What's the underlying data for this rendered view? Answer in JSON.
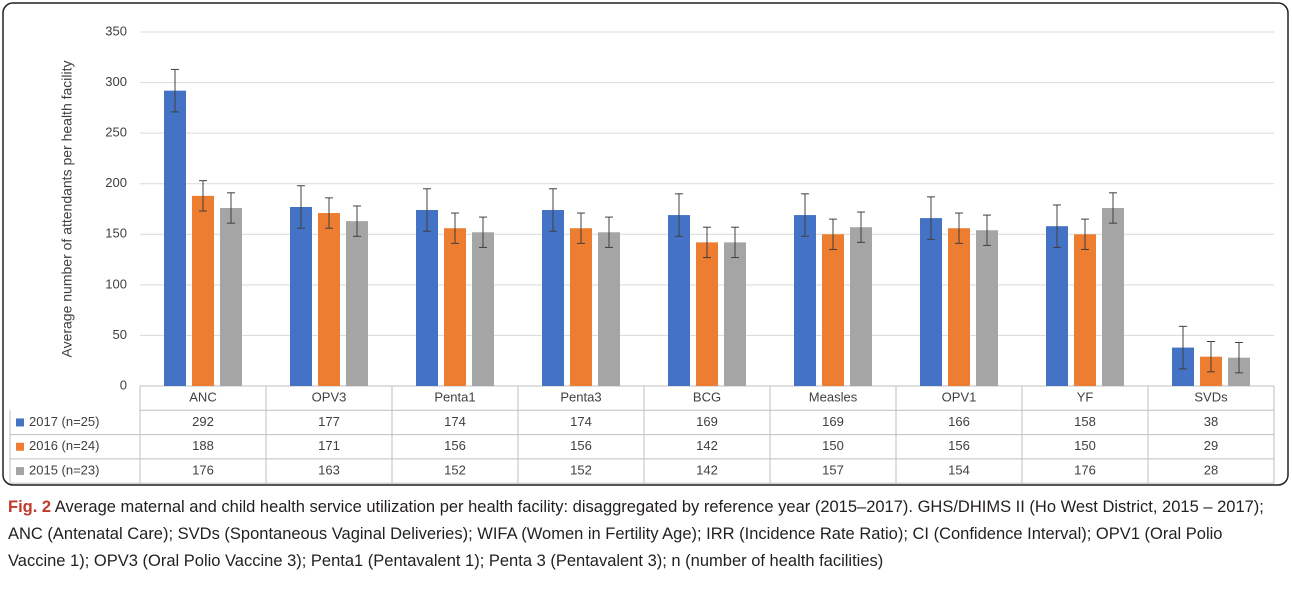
{
  "chart_data": {
    "type": "bar",
    "ylabel": "Average number of attendants per health facility",
    "categories": [
      "ANC",
      "OPV3",
      "Penta1",
      "Penta3",
      "BCG",
      "Measles",
      "OPV1",
      "YF",
      "SVDs"
    ],
    "series": [
      {
        "name": "2017 (n=25)",
        "color": "#4472c4",
        "values": [
          292,
          177,
          174,
          174,
          169,
          169,
          166,
          158,
          38
        ],
        "errors": [
          21,
          21,
          21,
          21,
          21,
          21,
          21,
          21,
          21
        ]
      },
      {
        "name": "2016 (n=24)",
        "color": "#ed7d31",
        "values": [
          188,
          171,
          156,
          156,
          142,
          150,
          156,
          150,
          29
        ],
        "errors": [
          15,
          15,
          15,
          15,
          15,
          15,
          15,
          15,
          15
        ]
      },
      {
        "name": "2015 (n=23)",
        "color": "#a5a5a5",
        "values": [
          176,
          163,
          152,
          152,
          142,
          157,
          154,
          176,
          28
        ],
        "errors": [
          15,
          15,
          15,
          15,
          15,
          15,
          15,
          15,
          15
        ]
      }
    ],
    "ylim": [
      0,
      350
    ],
    "yticks": [
      0,
      50,
      100,
      150,
      200,
      250,
      300,
      350
    ],
    "grid": true,
    "caption_label": "Fig. 2",
    "caption": "Average maternal and child health service utilization per health facility: disaggregated by reference year (2015–2017). GHS/DHIMS II (Ho West District, 2015 – 2017); ANC (Antenatal Care); SVDs (Spontaneous Vaginal Deliveries); WIFA (Women in Fertility Age); IRR (Incidence Rate Ratio); CI (Confidence Interval); OPV1 (Oral Polio Vaccine 1); OPV3 (Oral Polio Vaccine 3); Penta1 (Pentavalent 1); Penta 3 (Pentavalent 3); n (number of health facilities)"
  }
}
